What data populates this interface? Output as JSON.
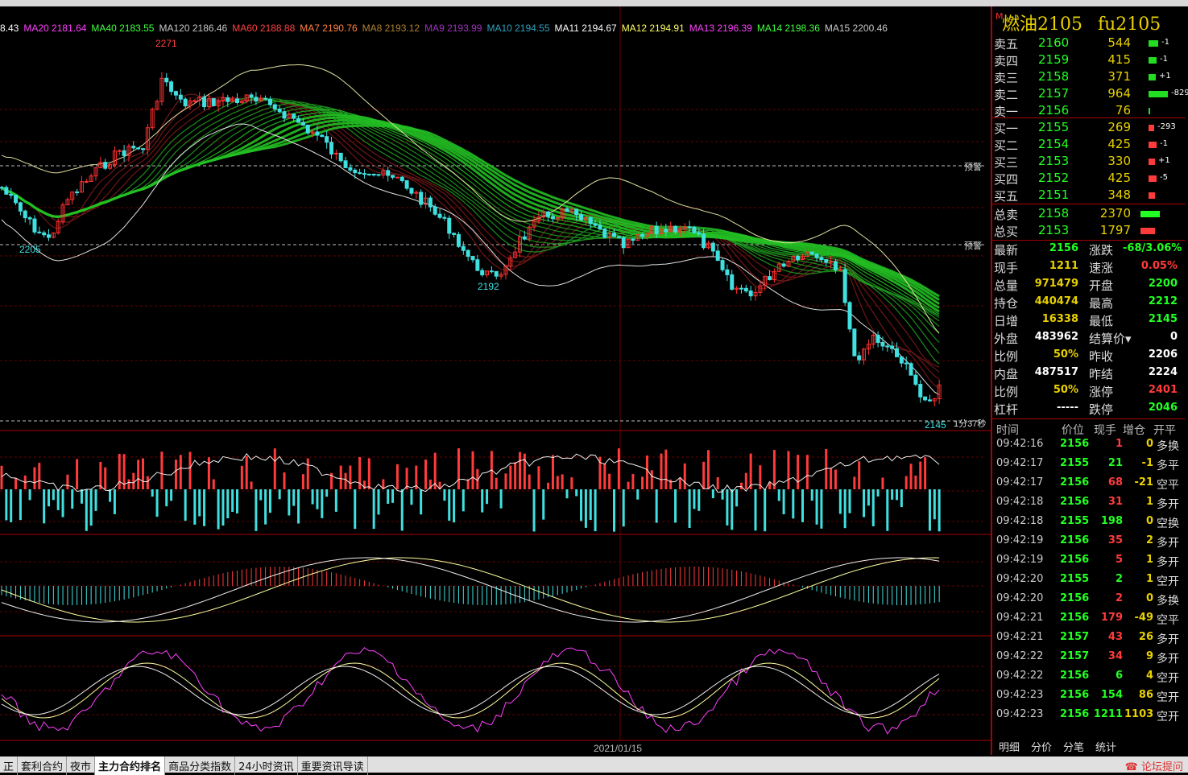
{
  "title": {
    "tag": "M",
    "name": "燃油2105",
    "code": "fu2105"
  },
  "ma_legend": [
    {
      "label": "8.43",
      "color": "#ffffff"
    },
    {
      "label": "MA20 2181.64",
      "color": "#ff40ff"
    },
    {
      "label": "MA40 2183.55",
      "color": "#40ff40"
    },
    {
      "label": "MA120 2186.46",
      "color": "#c8c8c8"
    },
    {
      "label": "MA60 2188.88",
      "color": "#ff4040"
    },
    {
      "label": "MA7 2190.76",
      "color": "#ff8040"
    },
    {
      "label": "MA8 2193.12",
      "color": "#b08030"
    },
    {
      "label": "MA9 2193.99",
      "color": "#a030c0"
    },
    {
      "label": "MA10 2194.55",
      "color": "#30a0c0"
    },
    {
      "label": "MA11 2194.67",
      "color": "#ffffff"
    },
    {
      "label": "MA12 2194.91",
      "color": "#ffff60"
    },
    {
      "label": "MA13 2196.39",
      "color": "#ff40ff"
    },
    {
      "label": "MA14 2198.36",
      "color": "#40ff40"
    },
    {
      "label": "MA15 2200.46",
      "color": "#c8c8c8"
    }
  ],
  "chart": {
    "high_label": "2271",
    "low_label_1": "2205",
    "low_label_2": "2192",
    "low_label_3": "2145",
    "alert_1": "预警",
    "alert_2": "预警",
    "countdown": "1分37秒",
    "date_label": "2021/01/15"
  },
  "order_book": {
    "asks": [
      {
        "label": "卖五",
        "price": "2160",
        "vol": "544",
        "chg": "-1",
        "bar": 12
      },
      {
        "label": "卖四",
        "price": "2159",
        "vol": "415",
        "chg": "-1",
        "bar": 10
      },
      {
        "label": "卖三",
        "price": "2158",
        "vol": "371",
        "chg": "+1",
        "bar": 9
      },
      {
        "label": "卖二",
        "price": "2157",
        "vol": "964",
        "chg": "-829",
        "bar": 24
      },
      {
        "label": "卖一",
        "price": "2156",
        "vol": "76",
        "chg": "",
        "bar": 2
      }
    ],
    "bids": [
      {
        "label": "买一",
        "price": "2155",
        "vol": "269",
        "chg": "-293",
        "bar": 7
      },
      {
        "label": "买二",
        "price": "2154",
        "vol": "425",
        "chg": "-1",
        "bar": 10
      },
      {
        "label": "买三",
        "price": "2153",
        "vol": "330",
        "chg": "+1",
        "bar": 8
      },
      {
        "label": "买四",
        "price": "2152",
        "vol": "425",
        "chg": "-5",
        "bar": 10
      },
      {
        "label": "买五",
        "price": "2151",
        "vol": "348",
        "chg": "",
        "bar": 8
      }
    ],
    "totals": [
      {
        "label": "总卖",
        "price": "2158",
        "vol": "2370",
        "color": "#22ff22",
        "bar": 24
      },
      {
        "label": "总买",
        "price": "2153",
        "vol": "1797",
        "color": "#ff3b3b",
        "bar": 18
      }
    ]
  },
  "stats": [
    {
      "l1": "最新",
      "v1": "2156",
      "c1": "#22ff22",
      "l2": "涨跌",
      "v2": "-68/3.06%",
      "c2": "#22ff22"
    },
    {
      "l1": "现手",
      "v1": "1211",
      "c1": "#e8d000",
      "l2": "速涨",
      "v2": "0.05%",
      "c2": "#ff3b3b"
    },
    {
      "l1": "总量",
      "v1": "971479",
      "c1": "#e8d000",
      "l2": "开盘",
      "v2": "2200",
      "c2": "#22ff22"
    },
    {
      "l1": "持仓",
      "v1": "440474",
      "c1": "#e8d000",
      "l2": "最高",
      "v2": "2212",
      "c2": "#22ff22"
    },
    {
      "l1": "日增",
      "v1": "16338",
      "c1": "#e8d000",
      "l2": "最低",
      "v2": "2145",
      "c2": "#22ff22"
    },
    {
      "l1": "外盘",
      "v1": "483962",
      "c1": "#ffffff",
      "l2": "结算价▾",
      "v2": "0",
      "c2": "#ffffff"
    },
    {
      "l1": "比例",
      "v1": "50%",
      "c1": "#e8d000",
      "l2": "昨收",
      "v2": "2206",
      "c2": "#ffffff"
    },
    {
      "l1": "内盘",
      "v1": "487517",
      "c1": "#ffffff",
      "l2": "昨结",
      "v2": "2224",
      "c2": "#ffffff"
    },
    {
      "l1": "比例",
      "v1": "50%",
      "c1": "#e8d000",
      "l2": "涨停",
      "v2": "2401",
      "c2": "#ff3b3b"
    },
    {
      "l1": "杠杆",
      "v1": "-----",
      "c1": "#ffffff",
      "l2": "跌停",
      "v2": "2046",
      "c2": "#22ff22"
    }
  ],
  "tick_head": [
    "时间",
    "价位",
    "现手",
    "增仓",
    "开平"
  ],
  "ticks": [
    {
      "t": "09:42:16",
      "p": "2156",
      "pc": "#22ff22",
      "v": "1",
      "vc": "#ff3b3b",
      "o": "0",
      "k": "多换"
    },
    {
      "t": "09:42:17",
      "p": "2155",
      "pc": "#22ff22",
      "v": "21",
      "vc": "#22ff22",
      "o": "-1",
      "k": "多平"
    },
    {
      "t": "09:42:17",
      "p": "2156",
      "pc": "#22ff22",
      "v": "68",
      "vc": "#ff3b3b",
      "o": "-21",
      "k": "空平"
    },
    {
      "t": "09:42:18",
      "p": "2156",
      "pc": "#22ff22",
      "v": "31",
      "vc": "#ff3b3b",
      "o": "1",
      "k": "多开"
    },
    {
      "t": "09:42:18",
      "p": "2155",
      "pc": "#22ff22",
      "v": "198",
      "vc": "#22ff22",
      "o": "0",
      "k": "空换"
    },
    {
      "t": "09:42:19",
      "p": "2156",
      "pc": "#22ff22",
      "v": "35",
      "vc": "#ff3b3b",
      "o": "2",
      "k": "多开"
    },
    {
      "t": "09:42:19",
      "p": "2156",
      "pc": "#22ff22",
      "v": "5",
      "vc": "#ff3b3b",
      "o": "1",
      "k": "多开"
    },
    {
      "t": "09:42:20",
      "p": "2155",
      "pc": "#22ff22",
      "v": "2",
      "vc": "#22ff22",
      "o": "1",
      "k": "空开"
    },
    {
      "t": "09:42:20",
      "p": "2156",
      "pc": "#22ff22",
      "v": "2",
      "vc": "#ff3b3b",
      "o": "0",
      "k": "多换"
    },
    {
      "t": "09:42:21",
      "p": "2156",
      "pc": "#22ff22",
      "v": "179",
      "vc": "#ff3b3b",
      "o": "-49",
      "k": "空平"
    },
    {
      "t": "09:42:21",
      "p": "2157",
      "pc": "#22ff22",
      "v": "43",
      "vc": "#ff3b3b",
      "o": "26",
      "k": "多开"
    },
    {
      "t": "09:42:22",
      "p": "2157",
      "pc": "#22ff22",
      "v": "34",
      "vc": "#ff3b3b",
      "o": "9",
      "k": "多开"
    },
    {
      "t": "09:42:22",
      "p": "2156",
      "pc": "#22ff22",
      "v": "6",
      "vc": "#22ff22",
      "o": "4",
      "k": "空开"
    },
    {
      "t": "09:42:23",
      "p": "2156",
      "pc": "#22ff22",
      "v": "154",
      "vc": "#22ff22",
      "o": "86",
      "k": "空开"
    },
    {
      "t": "09:42:23",
      "p": "2156",
      "pc": "#22ff22",
      "v": "1211",
      "vc": "#22ff22",
      "o": "1103",
      "k": "空开"
    }
  ],
  "right_tabs": [
    "明细",
    "分价",
    "分笔",
    "统计"
  ],
  "bottom_tabs": [
    "套利合约",
    "夜市",
    "主力合约排名",
    "商品分类指数",
    "24小时资讯",
    "重要资讯导读"
  ],
  "bottom_active": 2,
  "bottom_left_stub": "正",
  "forum_label": "论坛提问"
}
